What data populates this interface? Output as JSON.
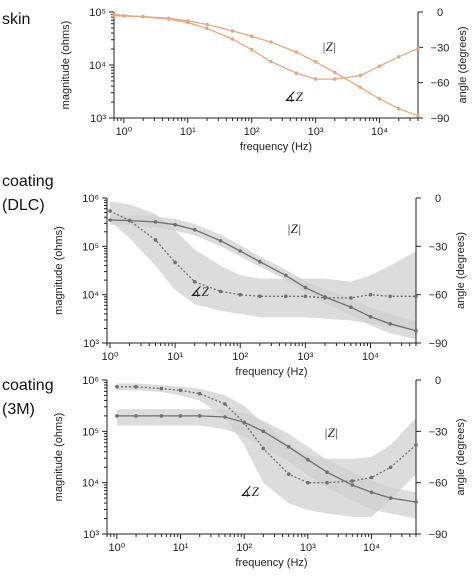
{
  "chart_data": [
    {
      "panel_label": "skin",
      "type": "line",
      "xlabel": "frequency (Hz)",
      "ylabel": "magnitude (ohms)",
      "y2label": "angle (degrees)",
      "xscale": "log",
      "xlim": [
        0.7,
        40000
      ],
      "ylim": [
        1000,
        100000
      ],
      "y2lim": [
        -90,
        0
      ],
      "xticks": [
        "10⁰",
        "10¹",
        "10²",
        "10³",
        "10⁴"
      ],
      "yticks": [
        "10³",
        "10⁴",
        "10⁵"
      ],
      "y2ticks": [
        "0",
        "−30",
        "−60",
        "−90"
      ],
      "band": false,
      "color": "#e3a982",
      "series": [
        {
          "name": "|Z|",
          "axis": "left",
          "x": [
            0.7,
            1,
            2,
            5,
            10,
            20,
            50,
            100,
            200,
            500,
            1000,
            2000,
            5000,
            10000,
            20000,
            40000
          ],
          "values": [
            85000,
            84000,
            82000,
            76000,
            68000,
            58000,
            44000,
            35000,
            27000,
            17500,
            11500,
            7200,
            3800,
            2300,
            1500,
            1100
          ]
        },
        {
          "name": "∡Z",
          "axis": "right",
          "x": [
            0.7,
            1,
            2,
            5,
            10,
            20,
            50,
            100,
            200,
            500,
            1000,
            2000,
            5000,
            10000,
            20000,
            40000
          ],
          "values": [
            -2,
            -3,
            -4,
            -6,
            -9,
            -14,
            -23,
            -32,
            -42,
            -52,
            -57,
            -57,
            -54,
            -46,
            -38,
            -31
          ]
        }
      ],
      "annotations": [
        {
          "text": "|Z|",
          "series": "|Z|"
        },
        {
          "text": "∡Z",
          "series": "∡Z"
        }
      ]
    },
    {
      "panel_label": "coating\n(DLC)",
      "type": "line",
      "xlabel": "frequency (Hz)",
      "ylabel": "magnitude (ohms)",
      "y2label": "angle (degrees)",
      "xscale": "log",
      "xlim": [
        0.9,
        50000
      ],
      "ylim": [
        1000,
        1000000
      ],
      "y2lim": [
        -90,
        0
      ],
      "xticks": [
        "10⁰",
        "10¹",
        "10²",
        "10³",
        "10⁴"
      ],
      "yticks": [
        "10³",
        "10⁴",
        "10⁵",
        "10⁶"
      ],
      "y2ticks": [
        "0",
        "−30",
        "−60",
        "−90"
      ],
      "band": true,
      "color": "#6f6f6f",
      "series": [
        {
          "name": "|Z|",
          "axis": "left",
          "x": [
            1,
            2,
            5,
            10,
            20,
            50,
            100,
            200,
            500,
            1000,
            2000,
            5000,
            10000,
            20000,
            50000
          ],
          "values": [
            350000,
            340000,
            320000,
            280000,
            220000,
            130000,
            80000,
            48000,
            25000,
            14000,
            9000,
            5500,
            3500,
            2500,
            1800
          ],
          "band_low": [
            280000,
            270000,
            250000,
            210000,
            170000,
            100000,
            62000,
            38000,
            20000,
            11000,
            6500,
            3800,
            2300,
            1600,
            1200
          ],
          "band_high": [
            450000,
            440000,
            420000,
            370000,
            290000,
            175000,
            105000,
            62000,
            33000,
            19000,
            13000,
            8500,
            5500,
            4000,
            2800
          ]
        },
        {
          "name": "∡Z",
          "axis": "right",
          "x": [
            1,
            2,
            5,
            10,
            20,
            50,
            100,
            200,
            500,
            1000,
            2000,
            5000,
            10000,
            20000,
            50000
          ],
          "values": [
            -8,
            -14,
            -26,
            -40,
            -52,
            -58,
            -60,
            -61,
            -61,
            -61,
            -62,
            -62,
            -60,
            -61,
            -61
          ],
          "band_low": [
            -14,
            -25,
            -42,
            -57,
            -66,
            -70,
            -72,
            -74,
            -74,
            -74,
            -75,
            -76,
            -78,
            -80,
            -82
          ],
          "band_high": [
            -2,
            -4,
            -10,
            -20,
            -32,
            -42,
            -48,
            -50,
            -50,
            -50,
            -50,
            -52,
            -48,
            -42,
            -33
          ]
        }
      ],
      "annotations": [
        {
          "text": "|Z|",
          "series": "|Z|"
        },
        {
          "text": "∡Z",
          "series": "∡Z"
        }
      ]
    },
    {
      "panel_label": "coating\n(3M)",
      "type": "line",
      "xlabel": "frequency (Hz)",
      "ylabel": "magnitude (ohms)",
      "y2label": "angle (degrees)",
      "xscale": "log",
      "xlim": [
        0.7,
        50000
      ],
      "ylim": [
        1000,
        1000000
      ],
      "y2lim": [
        -90,
        0
      ],
      "xticks": [
        "10⁰",
        "10¹",
        "10²",
        "10³",
        "10⁴"
      ],
      "yticks": [
        "10³",
        "10⁴",
        "10⁵",
        "10⁶"
      ],
      "y2ticks": [
        "0",
        "−30",
        "−60",
        "−90"
      ],
      "band": true,
      "color": "#6f6f6f",
      "series": [
        {
          "name": "|Z|",
          "axis": "left",
          "x": [
            1,
            2,
            5,
            10,
            20,
            50,
            100,
            200,
            500,
            1000,
            2000,
            5000,
            10000,
            20000,
            50000
          ],
          "values": [
            200000,
            200000,
            200000,
            200000,
            200000,
            190000,
            150000,
            100000,
            50000,
            28000,
            16000,
            9000,
            6500,
            5000,
            4200
          ],
          "band_low": [
            130000,
            130000,
            130000,
            130000,
            130000,
            110000,
            80000,
            50000,
            25000,
            14000,
            8000,
            4500,
            3000,
            2500,
            2000
          ],
          "band_high": [
            270000,
            270000,
            270000,
            270000,
            270000,
            270000,
            230000,
            160000,
            90000,
            50000,
            28000,
            16000,
            11000,
            8000,
            6500
          ]
        },
        {
          "name": "∡Z",
          "axis": "right",
          "x": [
            1,
            2,
            5,
            10,
            20,
            50,
            100,
            200,
            500,
            1000,
            2000,
            5000,
            10000,
            20000,
            50000
          ],
          "values": [
            -4,
            -4,
            -5,
            -6,
            -8,
            -14,
            -25,
            -40,
            -55,
            -60,
            -60,
            -59,
            -57,
            -51,
            -38
          ],
          "band_low": [
            -6,
            -6,
            -7,
            -9,
            -12,
            -22,
            -38,
            -60,
            -72,
            -76,
            -78,
            -80,
            -80,
            -70,
            -55
          ],
          "band_high": [
            -2,
            -2,
            -3,
            -4,
            -5,
            -9,
            -15,
            -25,
            -38,
            -44,
            -46,
            -46,
            -45,
            -38,
            -22
          ]
        }
      ],
      "annotations": [
        {
          "text": "|Z|",
          "series": "|Z|"
        },
        {
          "text": "∡Z",
          "series": "∡Z"
        }
      ]
    }
  ]
}
